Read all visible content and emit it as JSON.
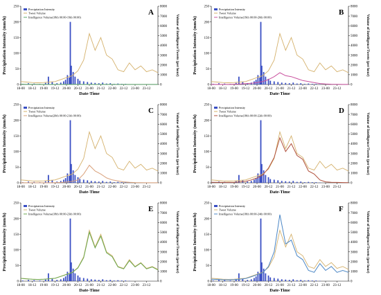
{
  "figure": {
    "x_ticks": [
      "18-00",
      "18-12",
      "19-00",
      "19-12",
      "20-00",
      "20-12",
      "21-00",
      "21-12",
      "22-00",
      "22-12",
      "23-00",
      "23-12"
    ],
    "y_left_ticks": [
      "0",
      "50",
      "100",
      "150",
      "200",
      "250"
    ],
    "y_right_ticks": [
      "0",
      "1000",
      "2000",
      "3000",
      "4000",
      "5000",
      "6000",
      "7000",
      "8000"
    ],
    "xlabel": "Date-Time",
    "ylabel_left": "Precipitation Intensity  (mm/h)",
    "ylabel_right": "Volume of Intelligence/Tweets  (per hour)"
  },
  "colors": {
    "precip": "#3a4fc4",
    "tweets": "#d4b06a",
    "intel_a": "#5aa56a",
    "intel_b": "#c9509e",
    "intel_c": "#d9a07a",
    "intel_d": "#b0503c",
    "intel_e": "#6aa84f",
    "intel_f": "#4a86c5"
  },
  "chart_data": [
    {
      "panel": "A",
      "type": "bar+line",
      "x": [
        0,
        6,
        12,
        18,
        24,
        30,
        36,
        42,
        48,
        54,
        60,
        66,
        72,
        78,
        84,
        90,
        96,
        102,
        108,
        114,
        120,
        126,
        132,
        138,
        144
      ],
      "series": [
        {
          "name": "Tweet Volume",
          "values": [
            300,
            250,
            200,
            180,
            200,
            250,
            300,
            500,
            700,
            900,
            1400,
            2500,
            5200,
            3500,
            4800,
            3000,
            2600,
            1500,
            1300,
            2200,
            1500,
            1900,
            1300,
            1500,
            1200
          ]
        },
        {
          "name": "Intelligence Volume(18th 00:00-19th 00:00)",
          "values": [
            30,
            20,
            20,
            15,
            10,
            10,
            10,
            10,
            10,
            10,
            10,
            10,
            10,
            10,
            10,
            10,
            10,
            10,
            10,
            10,
            10,
            10,
            10,
            10,
            10
          ]
        }
      ],
      "bars": {
        "name": "Precipitation Intensity",
        "x": [
          2,
          8,
          14,
          20,
          26,
          29,
          33,
          38,
          42,
          45,
          47,
          49,
          51,
          52,
          53,
          55,
          57,
          60,
          62,
          66,
          70,
          74,
          78,
          82,
          86,
          90,
          94,
          98,
          102,
          106,
          110,
          114
        ],
        "values": [
          2,
          4,
          3,
          2,
          5,
          25,
          8,
          4,
          6,
          10,
          15,
          30,
          22,
          200,
          60,
          40,
          25,
          18,
          12,
          10,
          8,
          6,
          5,
          4,
          6,
          3,
          4,
          2,
          3,
          2,
          2,
          1
        ]
      },
      "ylim_left": [
        0,
        250
      ],
      "ylim_right": [
        0,
        8000
      ],
      "xlim": [
        0,
        144
      ]
    },
    {
      "panel": "B",
      "type": "bar+line",
      "x": [
        0,
        6,
        12,
        18,
        24,
        30,
        36,
        42,
        48,
        54,
        60,
        66,
        72,
        78,
        84,
        90,
        96,
        102,
        108,
        114,
        120,
        126,
        132,
        138,
        144
      ],
      "series": [
        {
          "name": "Tweet Volume",
          "values": [
            300,
            250,
            200,
            180,
            200,
            250,
            300,
            500,
            700,
            900,
            1400,
            2500,
            5200,
            3500,
            4800,
            3000,
            2600,
            1500,
            1300,
            2200,
            1500,
            1900,
            1300,
            1500,
            1200
          ]
        },
        {
          "name": "Intelligence Volume(19th 00:00-20th 00:00)",
          "values": [
            10,
            10,
            10,
            10,
            30,
            60,
            90,
            120,
            200,
            300,
            500,
            800,
            1200,
            900,
            800,
            600,
            400,
            300,
            200,
            100,
            50,
            30,
            20,
            10,
            10
          ]
        }
      ],
      "bars": {
        "name": "Precipitation Intensity",
        "x": [
          2,
          8,
          14,
          20,
          26,
          29,
          33,
          38,
          42,
          45,
          47,
          49,
          51,
          52,
          53,
          55,
          57,
          60,
          62,
          66,
          70,
          74,
          78,
          82,
          86,
          90,
          94,
          98,
          102,
          106,
          110,
          114
        ],
        "values": [
          2,
          4,
          3,
          2,
          5,
          25,
          8,
          4,
          6,
          10,
          15,
          30,
          22,
          200,
          60,
          40,
          25,
          18,
          12,
          10,
          8,
          6,
          5,
          4,
          6,
          3,
          4,
          2,
          3,
          2,
          2,
          1
        ]
      },
      "ylim_left": [
        0,
        250
      ],
      "ylim_right": [
        0,
        8000
      ],
      "xlim": [
        0,
        144
      ]
    },
    {
      "panel": "C",
      "type": "bar+line",
      "x": [
        0,
        6,
        12,
        18,
        24,
        30,
        36,
        42,
        48,
        54,
        60,
        66,
        72,
        78,
        84,
        90,
        96,
        102,
        108,
        114,
        120,
        126,
        132,
        138,
        144
      ],
      "series": [
        {
          "name": "Tweet Volume",
          "values": [
            300,
            250,
            200,
            180,
            200,
            250,
            300,
            500,
            700,
            900,
            1400,
            2500,
            5200,
            3500,
            4800,
            3000,
            2600,
            1500,
            1300,
            2200,
            1500,
            1900,
            1300,
            1500,
            1200
          ]
        },
        {
          "name": "Intelligence Volume(20th 00:00-21th 00:00)",
          "values": [
            10,
            10,
            10,
            10,
            10,
            10,
            20,
            40,
            80,
            150,
            300,
            900,
            1800,
            1200,
            900,
            500,
            300,
            200,
            100,
            50,
            30,
            20,
            10,
            10,
            10
          ]
        }
      ],
      "bars": {
        "name": "Precipitation Intensity",
        "x": [
          2,
          8,
          14,
          20,
          26,
          29,
          33,
          38,
          42,
          45,
          47,
          49,
          51,
          52,
          53,
          55,
          57,
          60,
          62,
          66,
          70,
          74,
          78,
          82,
          86,
          90,
          94,
          98,
          102,
          106,
          110,
          114
        ],
        "values": [
          2,
          4,
          3,
          2,
          5,
          25,
          8,
          4,
          6,
          10,
          15,
          30,
          22,
          200,
          60,
          40,
          25,
          18,
          12,
          10,
          8,
          6,
          5,
          4,
          6,
          3,
          4,
          2,
          3,
          2,
          2,
          1
        ]
      },
      "ylim_left": [
        0,
        250
      ],
      "ylim_right": [
        0,
        8000
      ],
      "xlim": [
        0,
        144
      ]
    },
    {
      "panel": "D",
      "type": "bar+line",
      "x": [
        0,
        6,
        12,
        18,
        24,
        30,
        36,
        42,
        48,
        54,
        60,
        66,
        72,
        78,
        84,
        90,
        96,
        102,
        108,
        114,
        120,
        126,
        132,
        138,
        144
      ],
      "series": [
        {
          "name": "Tweet Volume",
          "values": [
            300,
            250,
            200,
            180,
            200,
            250,
            300,
            500,
            700,
            900,
            1400,
            2500,
            5200,
            3500,
            4800,
            3000,
            2600,
            1500,
            1300,
            2200,
            1500,
            1900,
            1300,
            1500,
            1200
          ]
        },
        {
          "name": "Intelligence Volume(18th 00:00-22th 00:00)",
          "values": [
            60,
            50,
            40,
            40,
            60,
            100,
            150,
            300,
            500,
            800,
            1500,
            2600,
            4600,
            3200,
            4000,
            2800,
            2400,
            1200,
            900,
            300,
            100,
            60,
            40,
            30,
            20
          ]
        }
      ],
      "bars": {
        "name": "Precipitation Intensity",
        "x": [
          2,
          8,
          14,
          20,
          26,
          29,
          33,
          38,
          42,
          45,
          47,
          49,
          51,
          52,
          53,
          55,
          57,
          60,
          62,
          66,
          70,
          74,
          78,
          82,
          86,
          90,
          94,
          98,
          102,
          106,
          110,
          114
        ],
        "values": [
          2,
          4,
          3,
          2,
          5,
          25,
          8,
          4,
          6,
          10,
          15,
          30,
          22,
          200,
          60,
          40,
          25,
          18,
          12,
          10,
          8,
          6,
          5,
          4,
          6,
          3,
          4,
          2,
          3,
          2,
          2,
          1
        ]
      },
      "ylim_left": [
        0,
        250
      ],
      "ylim_right": [
        0,
        8000
      ],
      "xlim": [
        0,
        144
      ]
    },
    {
      "panel": "E",
      "type": "bar+line",
      "x": [
        0,
        6,
        12,
        18,
        24,
        30,
        36,
        42,
        48,
        54,
        60,
        66,
        72,
        78,
        84,
        90,
        96,
        102,
        108,
        114,
        120,
        126,
        132,
        138,
        144
      ],
      "series": [
        {
          "name": "Tweet Volume",
          "values": [
            300,
            250,
            200,
            180,
            200,
            250,
            300,
            500,
            700,
            900,
            1400,
            2500,
            5200,
            3500,
            4800,
            3000,
            2600,
            1500,
            1300,
            2200,
            1500,
            1900,
            1300,
            1500,
            1200
          ]
        },
        {
          "name": "Intelligence Volume(18th 00:00-23th 00:00)",
          "values": [
            280,
            230,
            190,
            170,
            190,
            240,
            290,
            480,
            680,
            880,
            1350,
            2400,
            5000,
            3400,
            4600,
            2900,
            2500,
            1450,
            1250,
            2100,
            1450,
            1850,
            1250,
            1450,
            1150
          ]
        }
      ],
      "bars": {
        "name": "Precipitation Intensity",
        "x": [
          2,
          8,
          14,
          20,
          26,
          29,
          33,
          38,
          42,
          45,
          47,
          49,
          51,
          52,
          53,
          55,
          57,
          60,
          62,
          66,
          70,
          74,
          78,
          82,
          86,
          90,
          94,
          98,
          102,
          106,
          110,
          114
        ],
        "values": [
          2,
          4,
          3,
          2,
          5,
          25,
          8,
          4,
          6,
          10,
          15,
          30,
          22,
          200,
          60,
          40,
          25,
          18,
          12,
          10,
          8,
          6,
          5,
          4,
          6,
          3,
          4,
          2,
          3,
          2,
          2,
          1
        ]
      },
      "ylim_left": [
        0,
        250
      ],
      "ylim_right": [
        0,
        8000
      ],
      "xlim": [
        0,
        144
      ]
    },
    {
      "panel": "F",
      "type": "bar+line",
      "x": [
        0,
        6,
        12,
        18,
        24,
        30,
        36,
        42,
        48,
        54,
        60,
        66,
        72,
        78,
        84,
        90,
        96,
        102,
        108,
        114,
        120,
        126,
        132,
        138,
        144
      ],
      "series": [
        {
          "name": "Tweet Volume",
          "values": [
            300,
            250,
            200,
            180,
            200,
            250,
            300,
            500,
            700,
            900,
            1400,
            2500,
            5200,
            3500,
            4800,
            3000,
            2600,
            1500,
            1300,
            2200,
            1500,
            1900,
            1300,
            1500,
            1200
          ]
        },
        {
          "name": "Intelligence Volume(18th 00:00-24th 00:00)",
          "values": [
            200,
            180,
            150,
            140,
            160,
            200,
            260,
            450,
            650,
            850,
            1500,
            3000,
            6800,
            3800,
            4200,
            2600,
            2200,
            1100,
            900,
            1800,
            1100,
            1500,
            900,
            1100,
            900
          ]
        }
      ],
      "bars": {
        "name": "Precipitation Intensity",
        "x": [
          2,
          8,
          14,
          20,
          26,
          29,
          33,
          38,
          42,
          45,
          47,
          49,
          51,
          52,
          53,
          55,
          57,
          60,
          62,
          66,
          70,
          74,
          78,
          82,
          86,
          90,
          94,
          98,
          102,
          106,
          110,
          114
        ],
        "values": [
          2,
          4,
          3,
          2,
          5,
          25,
          8,
          4,
          6,
          10,
          15,
          30,
          22,
          200,
          60,
          40,
          25,
          18,
          12,
          10,
          8,
          6,
          5,
          4,
          6,
          3,
          4,
          2,
          3,
          2,
          2,
          1
        ]
      },
      "ylim_left": [
        0,
        250
      ],
      "ylim_right": [
        0,
        8000
      ],
      "xlim": [
        0,
        144
      ]
    }
  ]
}
